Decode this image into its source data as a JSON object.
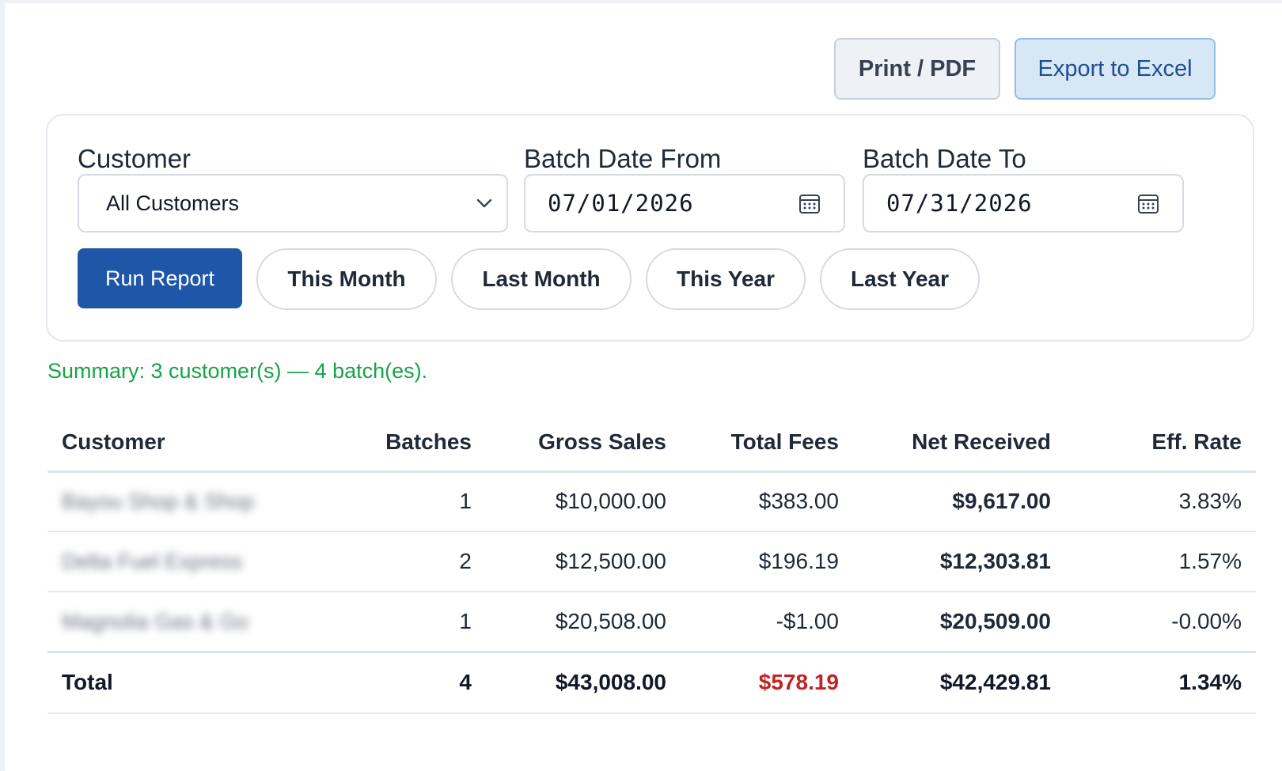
{
  "toolbar": {
    "print_label": "Print / PDF",
    "export_label": "Export to Excel"
  },
  "filters": {
    "customer_label": "Customer",
    "customer_value": "All Customers",
    "date_from_label": "Batch Date From",
    "date_from_value": "07/01/2026",
    "date_to_label": "Batch Date To",
    "date_to_value": "07/31/2026",
    "run_label": "Run Report",
    "quick_ranges": [
      "This Month",
      "Last Month",
      "This Year",
      "Last Year"
    ]
  },
  "summary": "Summary: 3 customer(s) — 4 batch(es).",
  "table": {
    "headers": [
      "Customer",
      "Batches",
      "Gross Sales",
      "Total Fees",
      "Net Received",
      "Eff. Rate"
    ],
    "rows": [
      {
        "customer": "Bayou Shop & Shop",
        "batches": "1",
        "gross": "$10,000.00",
        "fees": "$383.00",
        "net": "$9,617.00",
        "rate": "3.83%"
      },
      {
        "customer": "Delta Fuel Express",
        "batches": "2",
        "gross": "$12,500.00",
        "fees": "$196.19",
        "net": "$12,303.81",
        "rate": "1.57%"
      },
      {
        "customer": "Magnolia Gas & Go",
        "batches": "1",
        "gross": "$20,508.00",
        "fees": "-$1.00",
        "net": "$20,509.00",
        "rate": "-0.00%"
      }
    ],
    "total": {
      "label": "Total",
      "batches": "4",
      "gross": "$43,008.00",
      "fees": "$578.19",
      "net": "$42,429.81",
      "rate": "1.34%"
    }
  },
  "colors": {
    "primary": "#1f56a8",
    "fee_red": "#c02424",
    "summary_green": "#17a34a"
  },
  "icons": {
    "select": "chevron-down-icon",
    "date": "calendar-icon"
  }
}
